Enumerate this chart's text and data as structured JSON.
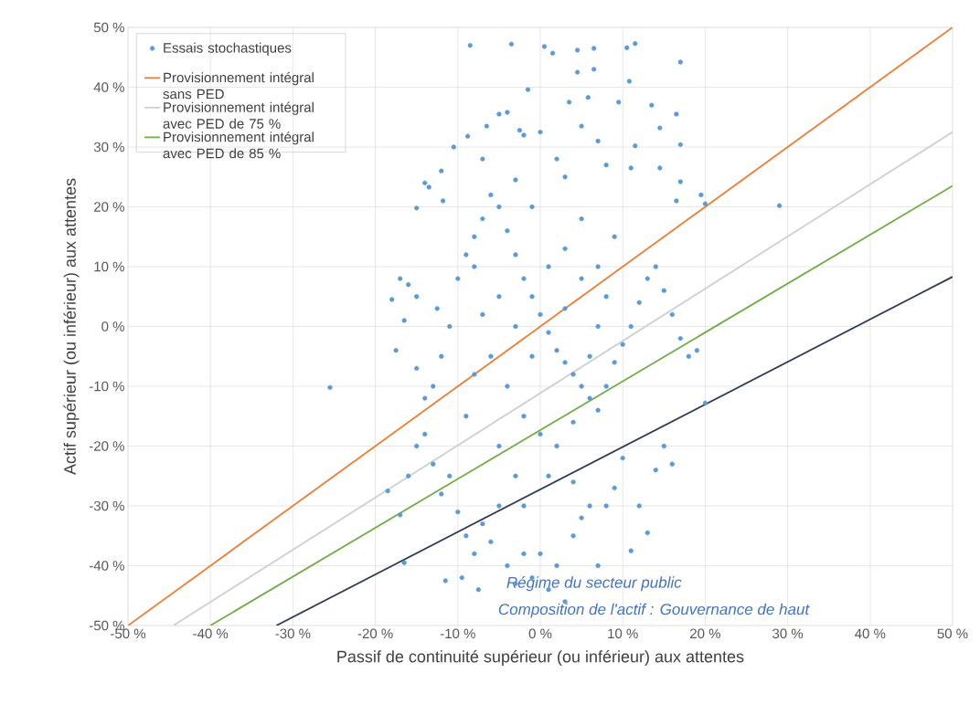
{
  "chart_data": {
    "type": "scatter",
    "xlabel": "Passif de continuité supérieur (ou inférieur) aux attentes",
    "ylabel": "Actif supérieur (ou inférieur) aux attentes",
    "annotations": [
      "Régime du secteur public",
      "Composition de l'actif : Gouvernance de haut"
    ],
    "xlim": [
      -50,
      50
    ],
    "ylim": [
      -50,
      50
    ],
    "xticks": [
      {
        "value": -50,
        "label": "-50 %"
      },
      {
        "value": -40,
        "label": "-40 %"
      },
      {
        "value": -30,
        "label": "-30 %"
      },
      {
        "value": -20,
        "label": "-20 %"
      },
      {
        "value": -10,
        "label": "-10 %"
      },
      {
        "value": 0,
        "label": "0 %"
      },
      {
        "value": 10,
        "label": "10 %"
      },
      {
        "value": 20,
        "label": "20 %"
      },
      {
        "value": 30,
        "label": "30 %"
      },
      {
        "value": 40,
        "label": "40 %"
      },
      {
        "value": 50,
        "label": "50 %"
      }
    ],
    "yticks": [
      {
        "value": -50,
        "label": "-50 %"
      },
      {
        "value": -40,
        "label": "-40 %"
      },
      {
        "value": -30,
        "label": "-30 %"
      },
      {
        "value": -20,
        "label": "-20 %"
      },
      {
        "value": -10,
        "label": "-10 %"
      },
      {
        "value": 0,
        "label": "0 %"
      },
      {
        "value": 10,
        "label": "10 %"
      },
      {
        "value": 20,
        "label": "20 %"
      },
      {
        "value": 30,
        "label": "30 %"
      },
      {
        "value": 40,
        "label": "40 %"
      },
      {
        "value": 50,
        "label": "50 %"
      }
    ],
    "grid": true,
    "legend": "top left",
    "series": [
      {
        "name": "Essais stochastiques",
        "marker": "circle",
        "color": "#5b9bd5",
        "x": [
          -8.5,
          -3.5,
          0.5,
          1.5,
          4.5,
          6.5,
          10.5,
          11.5,
          17,
          4.5,
          6.5,
          10.8,
          -1.5,
          3.5,
          5.8,
          9.5,
          13.5,
          16.5,
          -6.5,
          -2.5,
          0,
          5,
          7,
          11.5,
          14.5,
          17,
          -8.8,
          -5,
          -4,
          -2,
          -10.5,
          -12,
          -14,
          -11.8,
          -13.5,
          -7,
          -3,
          3,
          8,
          11,
          14.5,
          17,
          19.5,
          29,
          16.5,
          20,
          -15,
          -17,
          -16,
          -15,
          -18,
          -16.5,
          -17.5,
          -15,
          -14,
          -13,
          -12,
          -11,
          -12.5,
          -10,
          -9,
          -8,
          -7,
          -6,
          -5,
          -4,
          -3,
          -2,
          -1,
          0,
          1,
          2,
          3,
          4,
          5,
          6,
          7,
          8,
          9,
          10,
          11,
          12,
          13,
          14,
          15,
          16,
          17,
          18,
          19,
          20,
          -25.5,
          -18.5,
          -17,
          -16,
          -15,
          -14,
          -13,
          -12,
          -11,
          -10,
          -9,
          -8,
          -7,
          -6,
          -5,
          -4,
          -3,
          -2,
          -1,
          0,
          1,
          2,
          3,
          4,
          5,
          6,
          7,
          8,
          9,
          10,
          11,
          12,
          13,
          14,
          15,
          16,
          -16.5,
          -11.5,
          -9.5,
          -7.5,
          -5,
          -3,
          -1,
          1,
          3,
          5,
          7,
          -6,
          -4,
          -2,
          0,
          2,
          4,
          6,
          8,
          -8,
          -7,
          -9,
          -5,
          -3,
          1,
          3,
          5,
          -1,
          2,
          -8,
          7,
          9,
          -2,
          4
        ],
        "values": [
          47,
          47.2,
          46.8,
          45.7,
          46.2,
          46.5,
          46.6,
          47.3,
          44.2,
          42.5,
          43,
          41,
          39.6,
          37.5,
          38.3,
          37.5,
          37,
          35.5,
          33.5,
          32.8,
          32.5,
          33.5,
          31,
          30.2,
          33.2,
          30.4,
          31.8,
          35.5,
          35.8,
          32,
          30,
          26,
          24,
          21,
          23.3,
          28,
          24.5,
          25,
          27,
          26.5,
          26.5,
          24.2,
          22,
          20.2,
          21,
          20.5,
          19.8,
          8,
          7,
          5,
          4.5,
          1,
          -4,
          -7,
          -12,
          -10,
          -5,
          0,
          3,
          8,
          12,
          15,
          18,
          22,
          20,
          16,
          12,
          8,
          5,
          2,
          -1,
          -4,
          -6,
          -8,
          -10,
          -12,
          -14,
          -10,
          -6,
          -3,
          0,
          4,
          8,
          10,
          6,
          2,
          -2,
          -5,
          -4,
          -12.8,
          -10.2,
          -27.5,
          -31.5,
          -25,
          -20,
          -18,
          -23,
          -28,
          -25,
          -31,
          -35,
          -38,
          -33,
          -36,
          -30,
          -40,
          -43,
          -38,
          -42,
          -38,
          -44,
          -40,
          -46,
          -35,
          -32,
          -30,
          -40,
          -30,
          -27,
          -22,
          -37.5,
          -30,
          -34.5,
          -24,
          -20,
          -23,
          -39.5,
          -42.5,
          -42,
          -44,
          5,
          0,
          -5,
          10,
          3,
          8,
          0,
          -5,
          -10,
          -15,
          -18,
          -20,
          -16,
          -5,
          5,
          -8,
          2,
          -15,
          -20,
          -25,
          -25,
          13,
          18,
          20,
          28,
          10,
          10,
          15,
          -30,
          -26
        ]
      },
      {
        "name": "Provisionnement intégral sans PED",
        "type": "line",
        "marker": "none",
        "color": "#ed7d31",
        "x": [
          -50,
          50
        ],
        "values": [
          -50,
          50
        ]
      },
      {
        "name": "Provisionnement intégral avec PED de 75 %",
        "type": "line",
        "marker": "none",
        "color": "#d0d0d0",
        "x": [
          -44.5,
          50
        ],
        "values": [
          -50,
          32.5
        ]
      },
      {
        "name": "Provisionnement intégral avec PED de 85 %",
        "type": "line",
        "marker": "none",
        "color": "#70ad47",
        "x": [
          -40,
          50
        ],
        "values": [
          -50,
          23.5
        ]
      },
      {
        "type": "line",
        "marker": "none",
        "color": "#2f3b52",
        "x": [
          -32,
          50
        ],
        "values": [
          -50,
          8.3
        ]
      }
    ]
  }
}
